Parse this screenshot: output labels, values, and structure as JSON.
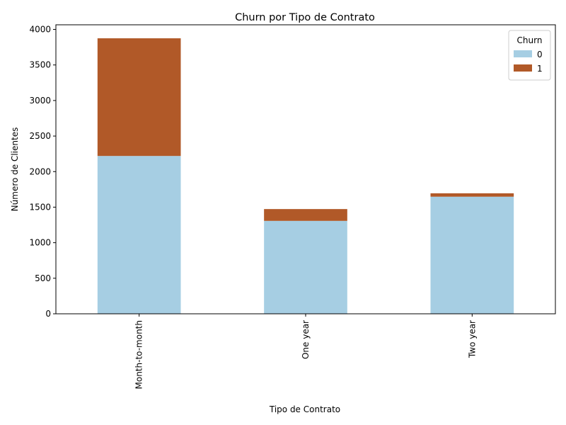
{
  "chart_data": {
    "type": "bar",
    "stacked": true,
    "title": "Churn por Tipo de Contrato",
    "xlabel": "Tipo de Contrato",
    "ylabel": "Número de Clientes",
    "categories": [
      "Month-to-month",
      "One year",
      "Two year"
    ],
    "series": [
      {
        "name": "0",
        "values": [
          2220,
          1307,
          1647
        ],
        "color": "#a6cee3"
      },
      {
        "name": "1",
        "values": [
          1655,
          166,
          48
        ],
        "color": "#b15928"
      }
    ],
    "ylim": [
      0,
      4065
    ],
    "yticks": [
      0,
      500,
      1000,
      1500,
      2000,
      2500,
      3000,
      3500,
      4000
    ],
    "legend": {
      "title": "Churn",
      "position": "top-right"
    },
    "grid": false
  }
}
